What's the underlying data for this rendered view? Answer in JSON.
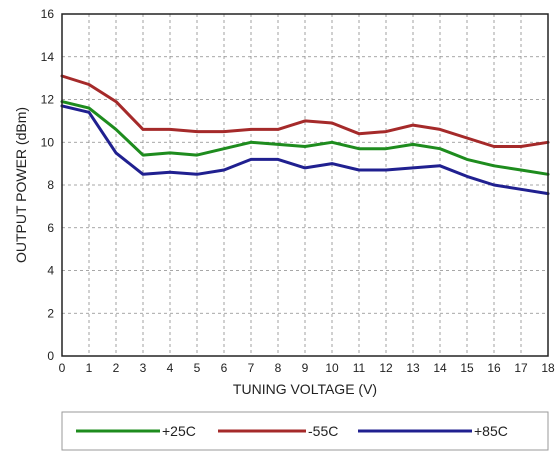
{
  "chart_data": {
    "type": "line",
    "xlabel": "TUNING VOLTAGE (V)",
    "ylabel": "OUTPUT POWER (dBm)",
    "xlim": [
      0,
      18
    ],
    "ylim": [
      0,
      16
    ],
    "x_ticks": [
      0,
      1,
      2,
      3,
      4,
      5,
      6,
      7,
      8,
      9,
      10,
      11,
      12,
      13,
      14,
      15,
      16,
      17,
      18
    ],
    "y_ticks": [
      0,
      2,
      4,
      6,
      8,
      10,
      12,
      14,
      16
    ],
    "grid": true,
    "legend_position": "bottom",
    "x": [
      0,
      1,
      2,
      3,
      4,
      5,
      6,
      7,
      8,
      9,
      10,
      11,
      12,
      13,
      14,
      15,
      16,
      17,
      18
    ],
    "series": [
      {
        "name": "+25C",
        "color": "#1e8c1e",
        "values": [
          11.9,
          11.6,
          10.6,
          9.4,
          9.5,
          9.4,
          9.7,
          10.0,
          9.9,
          9.8,
          10.0,
          9.7,
          9.7,
          9.9,
          9.7,
          9.2,
          8.9,
          8.7,
          8.5
        ]
      },
      {
        "name": "-55C",
        "color": "#a52a2a",
        "values": [
          13.1,
          12.7,
          11.9,
          10.6,
          10.6,
          10.5,
          10.5,
          10.6,
          10.6,
          11.0,
          10.9,
          10.4,
          10.5,
          10.8,
          10.6,
          10.2,
          9.8,
          9.8,
          10.0
        ]
      },
      {
        "name": "+85C",
        "color": "#202090",
        "values": [
          11.7,
          11.4,
          9.5,
          8.5,
          8.6,
          8.5,
          8.7,
          9.2,
          9.2,
          8.8,
          9.0,
          8.7,
          8.7,
          8.8,
          8.9,
          8.4,
          8.0,
          7.8,
          7.6
        ]
      }
    ]
  }
}
